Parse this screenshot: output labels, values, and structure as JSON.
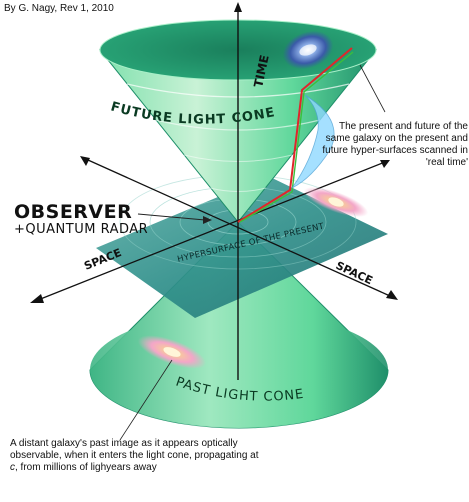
{
  "credit": "By G. Nagy, Rev 1, 2010",
  "axes": {
    "time": "TIME",
    "space_left": "SPACE",
    "space_right": "SPACE"
  },
  "labels": {
    "future_cone": "FUTURE LIGHT CONE",
    "past_cone": "PAST LIGHT CONE",
    "hypersurface": "HYPERSURFACE OF THE PRESENT",
    "observer": "OBSERVER",
    "radar": "+QUANTUM RADAR"
  },
  "notes": {
    "present_future": "The present and future of the same galaxy on the present and future hyper-surfaces scanned in 'real time'",
    "past_image_before": "A distant galaxy's past image as it appears optically observable, when it enters the light cone, propagating at ",
    "past_image_c": "c",
    "past_image_after": ", from millions of lighyears away"
  },
  "colors": {
    "cone_light": "#c9f2d6",
    "cone_mid": "#5fd79b",
    "cone_dark": "#1f8f6a",
    "plane": "#2f8f8a",
    "worldline_red": "#e0262b",
    "worldline_green": "#3bbf3b",
    "galaxy_pink": "#f3a6c8",
    "galaxy_blue": "#3a5aa8"
  },
  "icons": [
    "galaxy-icon"
  ]
}
